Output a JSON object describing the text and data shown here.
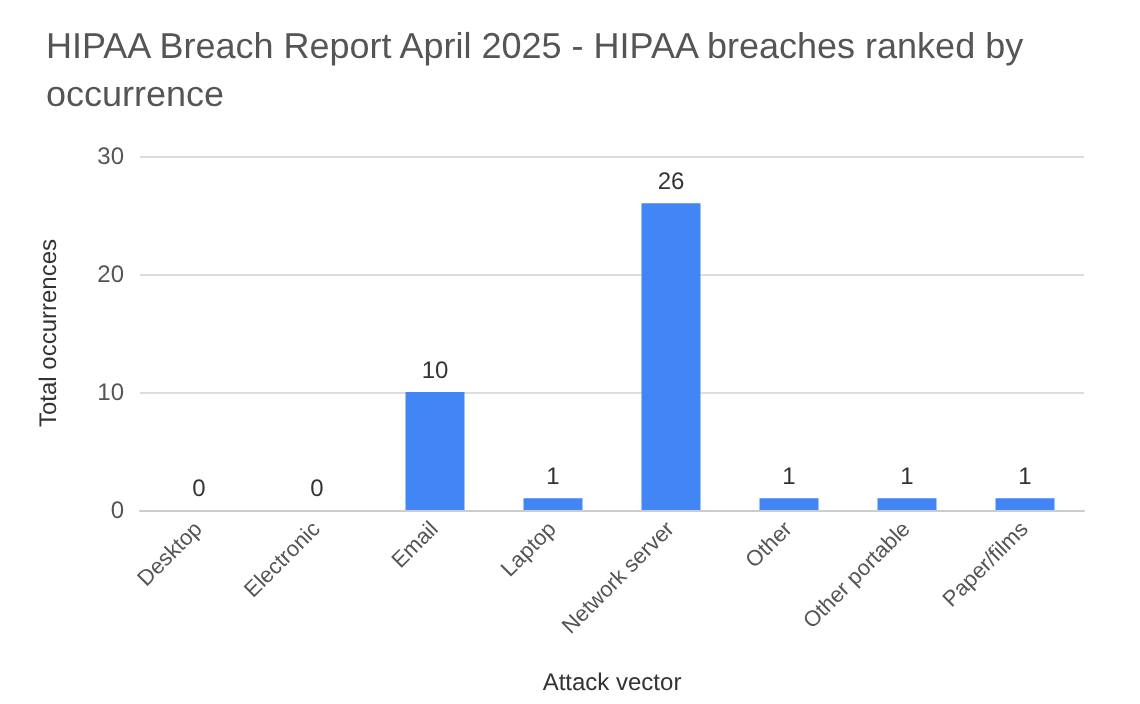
{
  "chart_data": {
    "type": "bar",
    "title": "HIPAA Breach Report April 2025 - HIPAA breaches ranked by occurrence",
    "xlabel": "Attack vector",
    "ylabel": "Total occurrences",
    "categories": [
      "Desktop",
      "Electronic",
      "Email",
      "Laptop",
      "Network server",
      "Other",
      "Other portable",
      "Paper/films"
    ],
    "values": [
      0,
      0,
      10,
      1,
      26,
      1,
      1,
      1
    ],
    "color": "#4285f4",
    "ylim": [
      0,
      30
    ],
    "yticks": [
      0,
      10,
      20,
      30
    ],
    "grid": true,
    "data_labels": true
  }
}
